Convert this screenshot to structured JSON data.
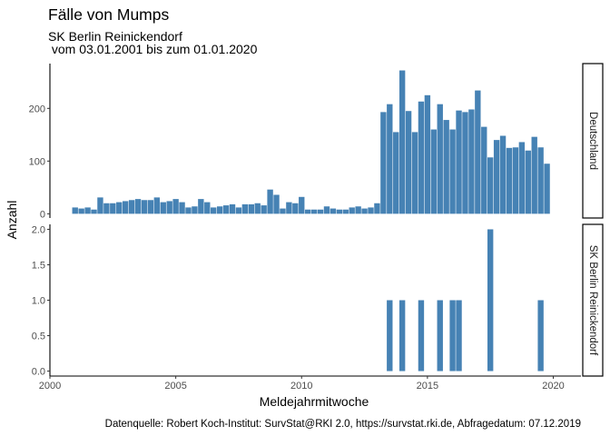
{
  "chart_data": {
    "type": "bar",
    "title": "Fälle von Mumps",
    "subtitle_lines": [
      "SK Berlin Reinickendorf",
      " vom 03.01.2001 bis zum 01.01.2020"
    ],
    "xlabel": "Meldejahrmitwoche",
    "ylabel": "Anzahl",
    "caption": "Datenquelle: Robert Koch-Institut: SurvStat@RKI 2.0, https://survstat.rki.de, Abfragedatum: 07.12.2019",
    "xlim": [
      2000,
      2021.1
    ],
    "x_ticks": [
      "2000",
      "2005",
      "2010",
      "2015",
      "2020"
    ],
    "bar_width_years": 0.23,
    "bar_color": "#4682B4",
    "grid": false,
    "panels": [
      {
        "strip": "Deutschland",
        "ylim": [
          -8,
          285
        ],
        "y_ticks": [
          "0",
          "100",
          "200"
        ],
        "x": [
          2001.0,
          2001.25,
          2001.5,
          2001.75,
          2002.0,
          2002.25,
          2002.5,
          2002.75,
          2003.0,
          2003.25,
          2003.5,
          2003.75,
          2004.0,
          2004.25,
          2004.5,
          2004.75,
          2005.0,
          2005.25,
          2005.5,
          2005.75,
          2006.0,
          2006.25,
          2006.5,
          2006.75,
          2007.0,
          2007.25,
          2007.5,
          2007.75,
          2008.0,
          2008.25,
          2008.5,
          2008.75,
          2009.0,
          2009.25,
          2009.5,
          2009.75,
          2010.0,
          2010.25,
          2010.5,
          2010.75,
          2011.0,
          2011.25,
          2011.5,
          2011.75,
          2012.0,
          2012.25,
          2012.5,
          2012.75,
          2013.0,
          2013.25,
          2013.5,
          2013.75,
          2014.0,
          2014.25,
          2014.5,
          2014.75,
          2015.0,
          2015.25,
          2015.5,
          2015.75,
          2016.0,
          2016.25,
          2016.5,
          2016.75,
          2017.0,
          2017.25,
          2017.5,
          2017.75,
          2018.0,
          2018.25,
          2018.5,
          2018.75,
          2019.0,
          2019.25,
          2019.5,
          2019.75
        ],
        "values": [
          12,
          10,
          12,
          8,
          31,
          20,
          20,
          22,
          24,
          26,
          28,
          26,
          26,
          31,
          22,
          24,
          28,
          22,
          12,
          14,
          28,
          22,
          12,
          14,
          16,
          18,
          12,
          18,
          18,
          20,
          16,
          46,
          36,
          10,
          22,
          20,
          32,
          8,
          8,
          8,
          14,
          10,
          8,
          8,
          12,
          14,
          10,
          12,
          20,
          193,
          208,
          155,
          272,
          195,
          155,
          213,
          225,
          160,
          208,
          178,
          160,
          196,
          193,
          198,
          234,
          165,
          107,
          140,
          148,
          125,
          126,
          136,
          120,
          146,
          126,
          95
        ]
      },
      {
        "strip": "SK Berlin Reinickendorf",
        "ylim": [
          -0.07,
          2.07
        ],
        "y_ticks": [
          "0.0",
          "0.5",
          "1.0",
          "1.5",
          "2.0"
        ],
        "x": [
          2013.5,
          2014.0,
          2014.75,
          2015.5,
          2016.0,
          2016.25,
          2017.5,
          2019.5
        ],
        "values": [
          1,
          1,
          1,
          1,
          1,
          1,
          2,
          1
        ]
      }
    ]
  }
}
